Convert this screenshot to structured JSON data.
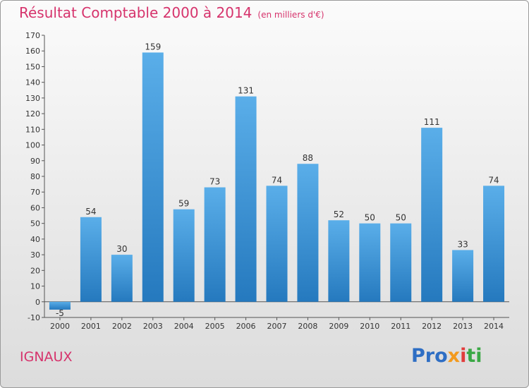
{
  "header": {
    "title": "Résultat Comptable 2000 à 2014",
    "subtitle": "(en milliers d'€)"
  },
  "footer": {
    "commune": "IGNAUX",
    "logo_parts": [
      "Pro",
      "x",
      "i",
      "ti"
    ]
  },
  "colors": {
    "title": "#d6336c",
    "bar_light": "#5aaee9",
    "bar_dark": "#2579be"
  },
  "chart_data": {
    "type": "bar",
    "categories": [
      "2000",
      "2001",
      "2002",
      "2003",
      "2004",
      "2005",
      "2006",
      "2007",
      "2008",
      "2009",
      "2010",
      "2011",
      "2012",
      "2013",
      "2014"
    ],
    "values": [
      -5,
      54,
      30,
      159,
      59,
      73,
      131,
      74,
      88,
      52,
      50,
      50,
      111,
      33,
      74
    ],
    "title": "Résultat Comptable 2000 à 2014",
    "subtitle": "(en milliers d'€)",
    "xlabel": "",
    "ylabel": "",
    "ylim": [
      -10,
      170
    ],
    "yticks": [
      -10,
      0,
      10,
      20,
      30,
      40,
      50,
      60,
      70,
      80,
      90,
      100,
      110,
      120,
      130,
      140,
      150,
      160,
      170
    ],
    "grid": false,
    "legend": "none"
  }
}
